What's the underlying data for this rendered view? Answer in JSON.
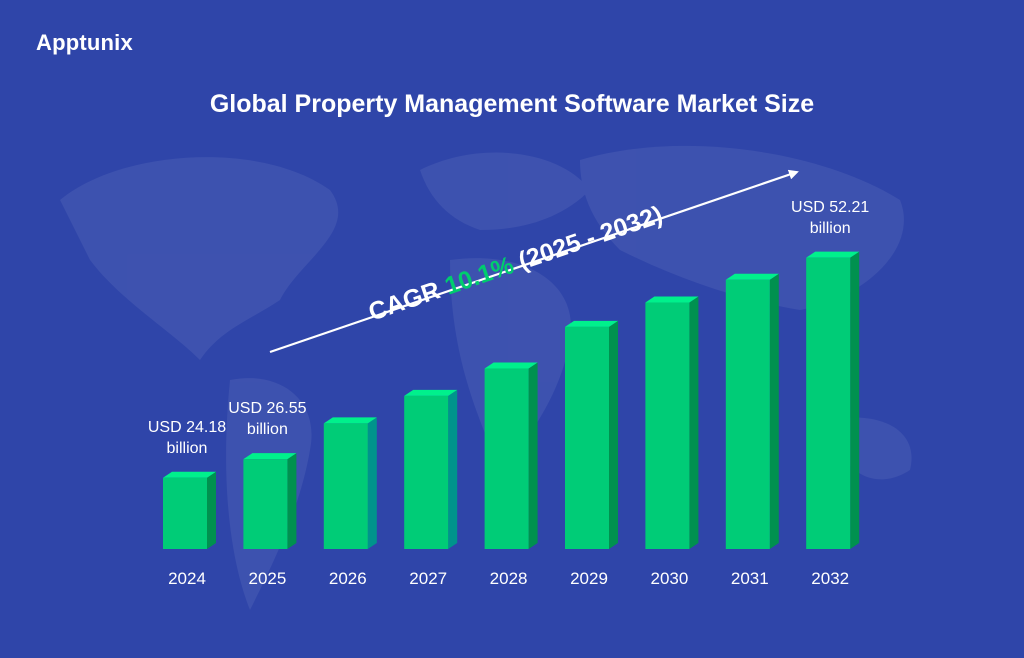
{
  "brand": {
    "logo_text": "Apptunix"
  },
  "colors": {
    "background": "#2f45a9",
    "bar_front": "#00cc77",
    "bar_top": "#00f08c",
    "bar_side": "#00914f",
    "accent": "#00cc6e"
  },
  "chart_data": {
    "type": "bar",
    "title": "Global Property Management Software Market Size",
    "xlabel": "",
    "ylabel": "",
    "categories": [
      "2024",
      "2025",
      "2026",
      "2027",
      "2028",
      "2029",
      "2030",
      "2031",
      "2032"
    ],
    "values": [
      24.18,
      26.55,
      31.1,
      34.6,
      38.1,
      43.4,
      46.5,
      49.4,
      52.21
    ],
    "unit": "USD billion",
    "ylim": [
      15.1,
      55
    ],
    "grid": false,
    "data_labels": [
      {
        "category": "2024",
        "line1": "USD 24.18",
        "line2": "billion"
      },
      {
        "category": "2025",
        "line1": "USD 26.55",
        "line2": "billion"
      },
      {
        "category": "2032",
        "line1": "USD 52.21",
        "line2": "billion"
      }
    ],
    "annotation": {
      "prefix": "CAGR",
      "rate": "10.1%",
      "period": "(2025 - 2032)"
    }
  }
}
